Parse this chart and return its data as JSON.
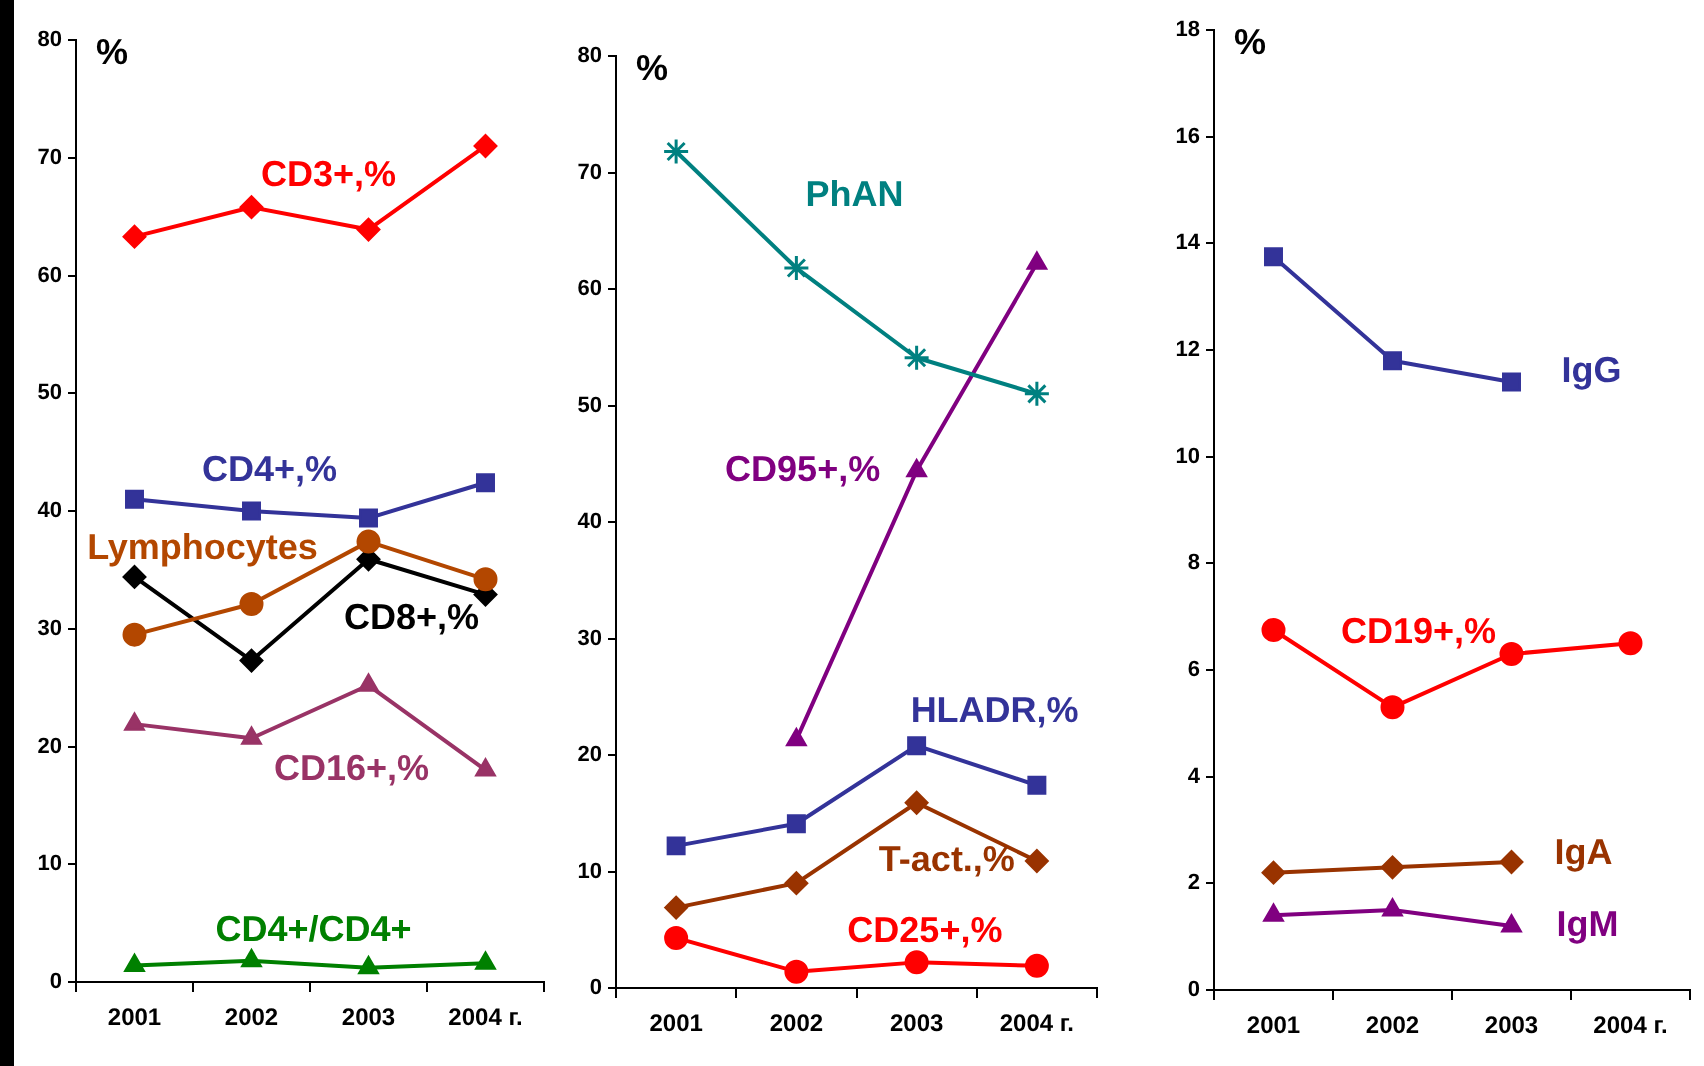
{
  "chart_data": [
    {
      "type": "line",
      "ylabel": "%",
      "categories": [
        "2001",
        "2002",
        "2003",
        "2004 г."
      ],
      "ylim": [
        0,
        80
      ],
      "yticks": [
        0,
        10,
        20,
        30,
        40,
        50,
        60,
        70,
        80
      ],
      "grid": false,
      "legend": false,
      "series": [
        {
          "name": "CD3+,%",
          "color": "#ff0000",
          "marker": "diamond",
          "values": [
            63.3,
            65.8,
            63.9,
            71
          ]
        },
        {
          "name": "CD4+,%",
          "color": "#333399",
          "marker": "square",
          "values": [
            41,
            40,
            39.4,
            42.4
          ]
        },
        {
          "name": "Lymphocytes",
          "color": "#b34700",
          "marker": "circle",
          "values": [
            29.5,
            32.1,
            37.4,
            34.2
          ]
        },
        {
          "name": "CD8+,%",
          "color": "#000000",
          "marker": "diamond",
          "values": [
            34.4,
            27.3,
            35.9,
            32.9
          ]
        },
        {
          "name": "CD16+,%",
          "color": "#993366",
          "marker": "triangle",
          "values": [
            21.9,
            20.7,
            25.2,
            18
          ]
        },
        {
          "name": "CD4+/CD4+",
          "color": "#008000",
          "marker": "triangle",
          "values": [
            1.4,
            1.8,
            1.2,
            1.6
          ]
        }
      ]
    },
    {
      "type": "line",
      "ylabel": "%",
      "categories": [
        "2001",
        "2002",
        "2003",
        "2004 г."
      ],
      "ylim": [
        0,
        80
      ],
      "yticks": [
        0,
        10,
        20,
        30,
        40,
        50,
        60,
        70,
        80
      ],
      "grid": false,
      "legend": false,
      "series": [
        {
          "name": "PhAN",
          "color": "#008080",
          "marker": "cross",
          "values": [
            71.8,
            61.8,
            54.1,
            51
          ]
        },
        {
          "name": "CD95+,%",
          "color": "#800080",
          "marker": "triangle",
          "values": [
            null,
            21.3,
            44.4,
            62.2
          ]
        },
        {
          "name": "HLADR,%",
          "color": "#333399",
          "marker": "square",
          "values": [
            12.2,
            14.1,
            20.8,
            17.4
          ]
        },
        {
          "name": "T-act.,%",
          "color": "#993300",
          "marker": "diamond",
          "values": [
            6.9,
            9,
            15.9,
            10.9
          ]
        },
        {
          "name": "CD25+,%",
          "color": "#ff0000",
          "marker": "circle",
          "values": [
            4.3,
            1.4,
            2.2,
            1.9
          ]
        }
      ]
    },
    {
      "type": "line",
      "ylabel": "%",
      "categories": [
        "2001",
        "2002",
        "2003",
        "2004 г."
      ],
      "ylim": [
        0,
        18
      ],
      "yticks": [
        0,
        2,
        4,
        6,
        8,
        10,
        12,
        14,
        16,
        18
      ],
      "grid": false,
      "legend": false,
      "series": [
        {
          "name": "IgG",
          "color": "#333399",
          "marker": "square",
          "values": [
            13.75,
            11.8,
            11.4,
            null
          ]
        },
        {
          "name": "CD19+,%",
          "color": "#ff0000",
          "marker": "circle",
          "values": [
            6.75,
            5.3,
            6.3,
            6.5
          ]
        },
        {
          "name": "IgA",
          "color": "#993300",
          "marker": "diamond",
          "values": [
            2.2,
            2.3,
            2.4,
            null
          ]
        },
        {
          "name": "IgM",
          "color": "#800080",
          "marker": "triangle",
          "values": [
            1.4,
            1.5,
            1.2,
            null
          ]
        }
      ]
    }
  ]
}
